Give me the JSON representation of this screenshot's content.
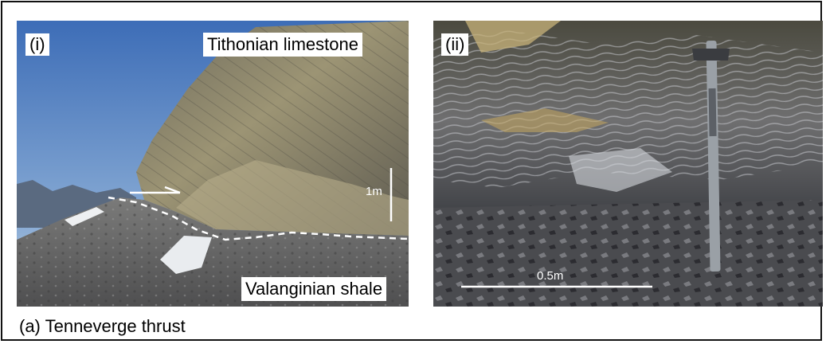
{
  "panels": [
    {
      "id": "i",
      "label": "(i)",
      "upper_label": "Tithonian limestone",
      "lower_label": "Valanginian shale",
      "scale_label": "1m"
    },
    {
      "id": "ii",
      "label": "(ii)",
      "scale_label": "0.5m"
    }
  ],
  "caption": "(a) Tenneverge thrust",
  "colors": {
    "sky_top": "#3f6fb8",
    "sky_bottom": "#a9c4df",
    "limestone": "#8d8770",
    "shale": "#5f5f5f",
    "dark_shale": "#2f3135",
    "annotation": "#ffffff"
  }
}
